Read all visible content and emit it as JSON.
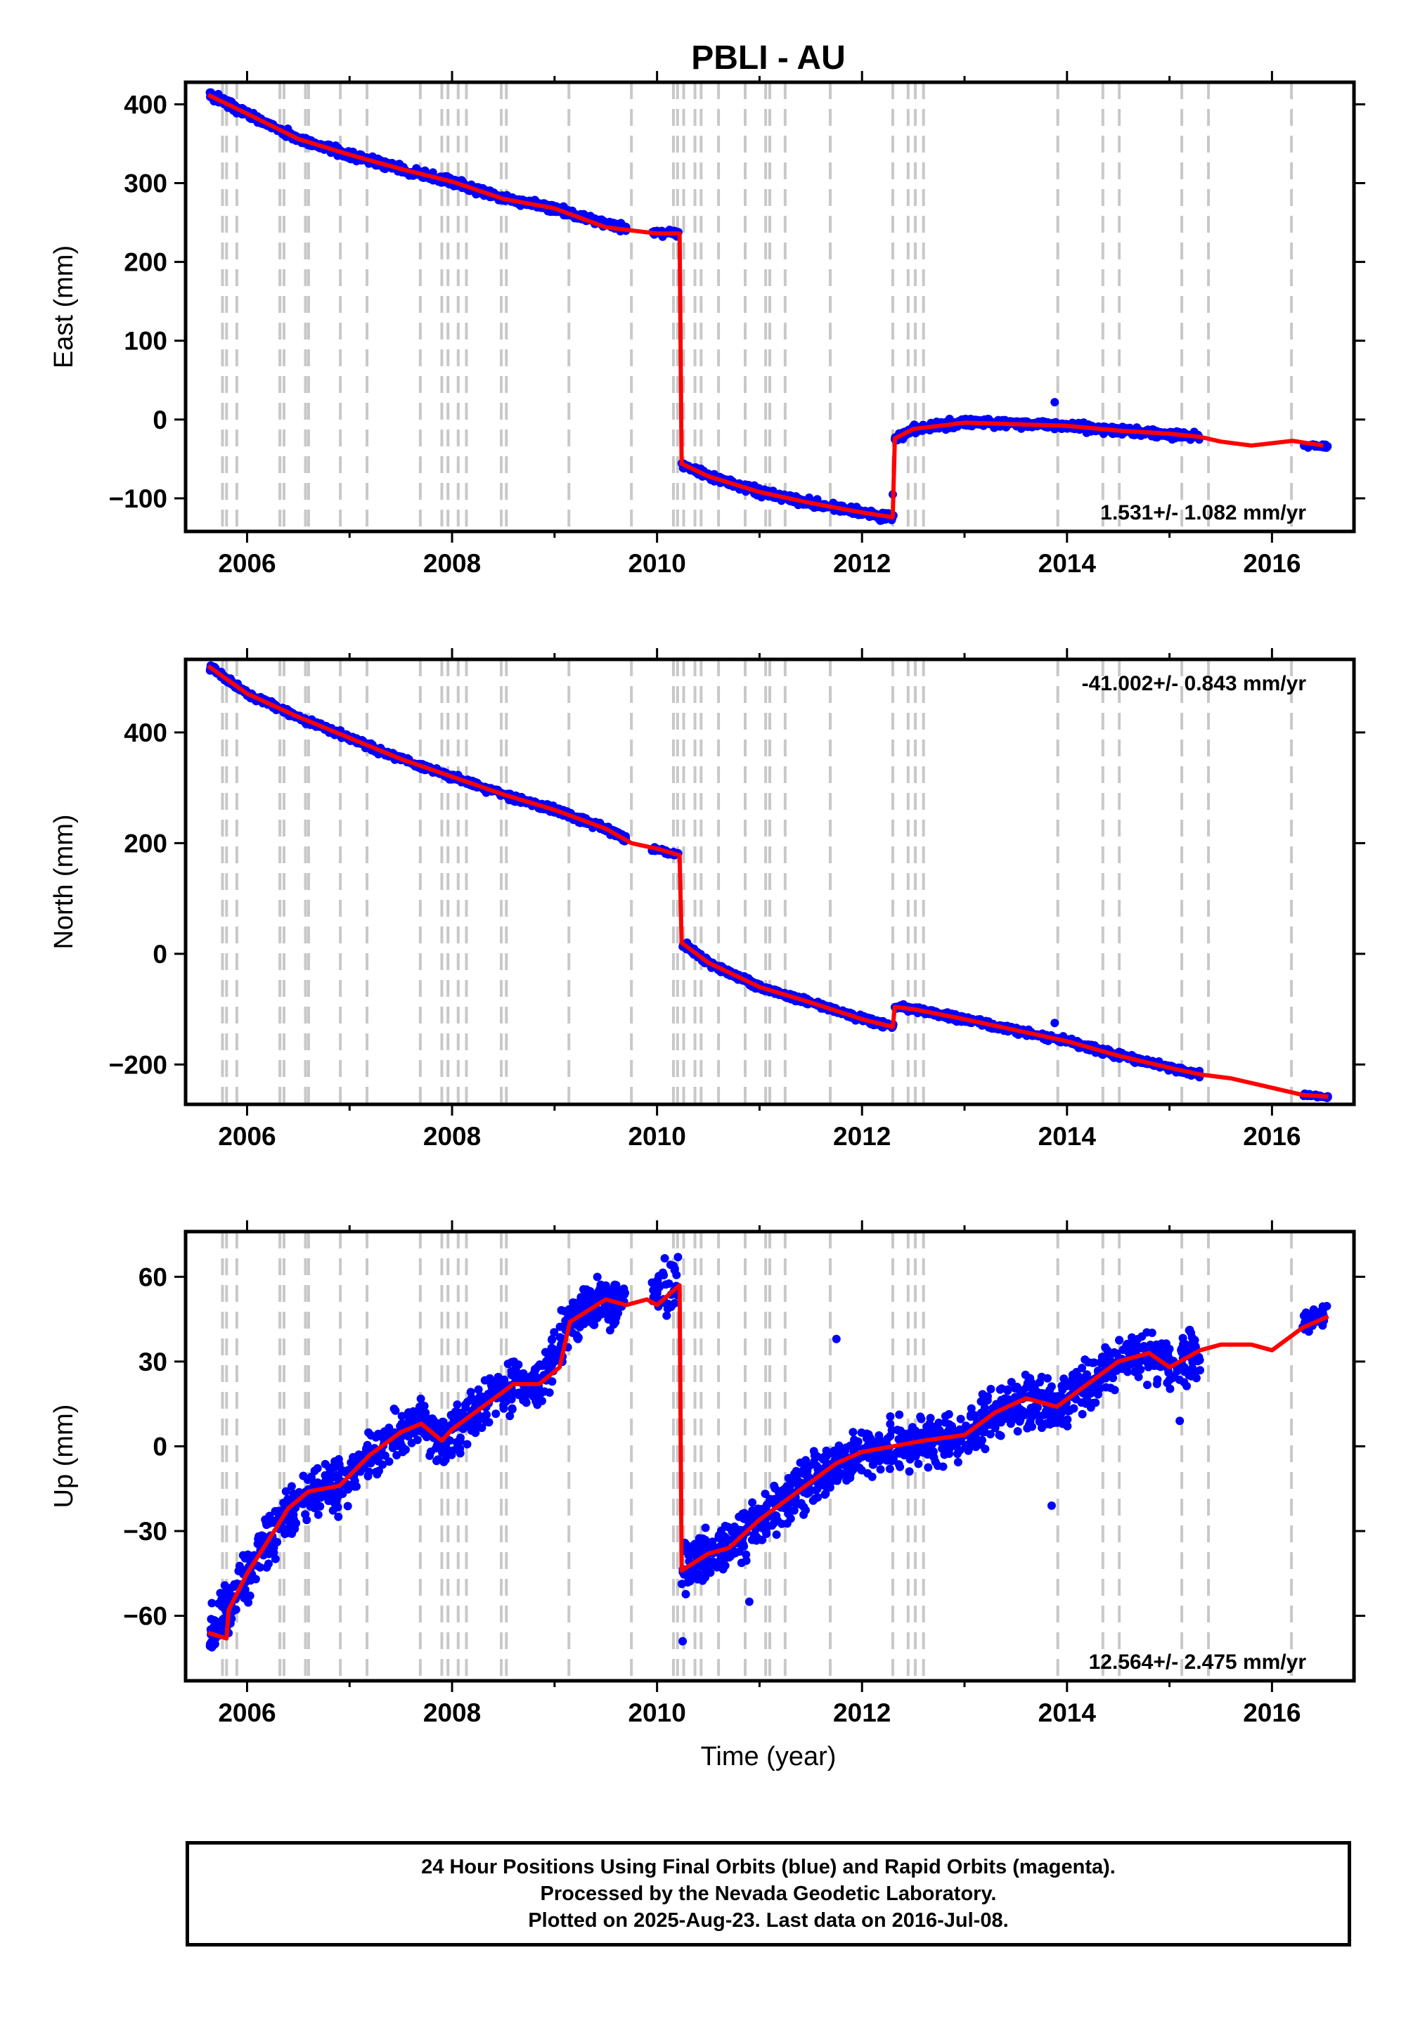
{
  "title": "PBLI - AU",
  "xlabel": "Time (year)",
  "colors": {
    "data": "#0000ff",
    "model": "#ff0000",
    "steps": "#c8c8c8"
  },
  "x_ticks": [
    "2006",
    "2008",
    "2010",
    "2012",
    "2014",
    "2016"
  ],
  "footer": [
    "24 Hour Positions Using Final Orbits (blue) and Rapid Orbits (magenta).",
    "Processed by the Nevada Geodetic Laboratory.",
    "Plotted on 2025-Aug-23. Last data on 2016-Jul-08."
  ],
  "chart_data": [
    {
      "type": "scatter",
      "ylabel": "East (mm)",
      "xlim": [
        2005.4,
        2016.8
      ],
      "ylim": [
        -142,
        428
      ],
      "y_ticks": [
        400,
        300,
        200,
        100,
        0,
        -100
      ],
      "rate_label": "1.531+/- 1.082 mm/yr",
      "rate_position": "bottom-right",
      "model": [
        [
          2005.62,
          412
        ],
        [
          2006.0,
          388
        ],
        [
          2006.5,
          356
        ],
        [
          2007.0,
          336
        ],
        [
          2007.5,
          318
        ],
        [
          2008.0,
          302
        ],
        [
          2008.5,
          280
        ],
        [
          2009.0,
          268
        ],
        [
          2009.5,
          244
        ],
        [
          2009.75,
          240
        ],
        [
          2010.0,
          236
        ],
        [
          2010.22,
          236
        ],
        [
          2010.24,
          -56
        ],
        [
          2010.5,
          -72
        ],
        [
          2011.0,
          -92
        ],
        [
          2011.5,
          -106
        ],
        [
          2012.0,
          -118
        ],
        [
          2012.3,
          -124
        ],
        [
          2012.32,
          -24
        ],
        [
          2012.5,
          -12
        ],
        [
          2013.0,
          -4
        ],
        [
          2013.5,
          -6
        ],
        [
          2014.0,
          -8
        ],
        [
          2014.5,
          -14
        ],
        [
          2015.0,
          -18
        ],
        [
          2015.3,
          -22
        ],
        [
          2015.5,
          -28
        ],
        [
          2015.8,
          -33
        ],
        [
          2016.2,
          -27
        ],
        [
          2016.5,
          -33
        ]
      ],
      "scatter_segments": [
        {
          "x0": 2005.63,
          "x1": 2009.7,
          "pts": [
            [
              2005.63,
              412
            ],
            [
              2006.0,
              388
            ],
            [
              2006.5,
              356
            ],
            [
              2007.0,
              336
            ],
            [
              2007.5,
              318
            ],
            [
              2008.0,
              302
            ],
            [
              2008.5,
              280
            ],
            [
              2009.0,
              268
            ],
            [
              2009.5,
              248
            ],
            [
              2009.7,
              242
            ]
          ],
          "noise": 3.5,
          "n": 820
        },
        {
          "x0": 2009.95,
          "x1": 2010.21,
          "pts": [
            [
              2009.95,
              238
            ],
            [
              2010.21,
              236
            ]
          ],
          "noise": 3,
          "n": 35
        },
        {
          "x0": 2010.24,
          "x1": 2012.31,
          "pts": [
            [
              2010.24,
              -56
            ],
            [
              2010.5,
              -72
            ],
            [
              2011.0,
              -92
            ],
            [
              2011.5,
              -106
            ],
            [
              2012.0,
              -118
            ],
            [
              2012.31,
              -125
            ]
          ],
          "noise": 3.5,
          "n": 420
        },
        {
          "x0": 2012.32,
          "x1": 2015.3,
          "pts": [
            [
              2012.32,
              -24
            ],
            [
              2012.5,
              -12
            ],
            [
              2013.0,
              -3
            ],
            [
              2013.5,
              -5
            ],
            [
              2014.0,
              -8
            ],
            [
              2014.5,
              -14
            ],
            [
              2015.0,
              -19
            ],
            [
              2015.3,
              -22
            ]
          ],
          "noise": 3.5,
          "n": 600
        },
        {
          "x0": 2016.3,
          "x1": 2016.55,
          "pts": [
            [
              2016.3,
              -33
            ],
            [
              2016.55,
              -34
            ]
          ],
          "noise": 1.5,
          "n": 30
        }
      ],
      "outliers": [
        [
          2013.88,
          22
        ],
        [
          2012.3,
          -95
        ]
      ]
    },
    {
      "type": "scatter",
      "ylabel": "North (mm)",
      "xlim": [
        2005.4,
        2016.8
      ],
      "ylim": [
        -272,
        532
      ],
      "y_ticks": [
        400,
        200,
        0,
        -200
      ],
      "rate_label": "-41.002+/- 0.843 mm/yr",
      "rate_position": "top-right",
      "model": [
        [
          2005.62,
          520
        ],
        [
          2006.0,
          470
        ],
        [
          2006.5,
          428
        ],
        [
          2007.0,
          390
        ],
        [
          2007.5,
          352
        ],
        [
          2008.0,
          320
        ],
        [
          2008.5,
          288
        ],
        [
          2009.0,
          260
        ],
        [
          2009.5,
          226
        ],
        [
          2009.75,
          200
        ],
        [
          2010.0,
          190
        ],
        [
          2010.22,
          178
        ],
        [
          2010.24,
          20
        ],
        [
          2010.5,
          -16
        ],
        [
          2011.0,
          -60
        ],
        [
          2011.5,
          -88
        ],
        [
          2012.0,
          -118
        ],
        [
          2012.3,
          -132
        ],
        [
          2012.32,
          -96
        ],
        [
          2012.5,
          -100
        ],
        [
          2013.0,
          -118
        ],
        [
          2013.5,
          -138
        ],
        [
          2014.0,
          -158
        ],
        [
          2014.5,
          -184
        ],
        [
          2015.0,
          -206
        ],
        [
          2015.3,
          -218
        ],
        [
          2015.6,
          -225
        ],
        [
          2016.0,
          -242
        ],
        [
          2016.3,
          -255
        ],
        [
          2016.55,
          -258
        ]
      ],
      "scatter_segments": [
        {
          "x0": 2005.63,
          "x1": 2009.7,
          "pts": [
            [
              2005.63,
              520
            ],
            [
              2006.0,
              470
            ],
            [
              2006.5,
              428
            ],
            [
              2007.0,
              390
            ],
            [
              2007.5,
              352
            ],
            [
              2008.0,
              320
            ],
            [
              2008.5,
              288
            ],
            [
              2009.0,
              260
            ],
            [
              2009.5,
              226
            ],
            [
              2009.7,
              208
            ]
          ],
          "noise": 4,
          "n": 820
        },
        {
          "x0": 2009.95,
          "x1": 2010.21,
          "pts": [
            [
              2009.95,
              190
            ],
            [
              2010.21,
              180
            ]
          ],
          "noise": 3,
          "n": 35
        },
        {
          "x0": 2010.24,
          "x1": 2012.31,
          "pts": [
            [
              2010.24,
              20
            ],
            [
              2010.5,
              -16
            ],
            [
              2011.0,
              -60
            ],
            [
              2011.5,
              -88
            ],
            [
              2012.0,
              -118
            ],
            [
              2012.31,
              -132
            ]
          ],
          "noise": 4,
          "n": 420
        },
        {
          "x0": 2012.32,
          "x1": 2015.3,
          "pts": [
            [
              2012.32,
              -96
            ],
            [
              2012.5,
              -100
            ],
            [
              2013.0,
              -118
            ],
            [
              2013.5,
              -138
            ],
            [
              2014.0,
              -158
            ],
            [
              2014.5,
              -184
            ],
            [
              2015.0,
              -206
            ],
            [
              2015.3,
              -218
            ]
          ],
          "noise": 4,
          "n": 600
        },
        {
          "x0": 2016.3,
          "x1": 2016.55,
          "pts": [
            [
              2016.3,
              -255
            ],
            [
              2016.55,
              -258
            ]
          ],
          "noise": 2,
          "n": 30
        }
      ],
      "outliers": [
        [
          2013.88,
          -125
        ]
      ]
    },
    {
      "type": "scatter",
      "ylabel": "Up (mm)",
      "xlim": [
        2005.4,
        2016.8
      ],
      "ylim": [
        -83,
        76
      ],
      "y_ticks": [
        60,
        30,
        0,
        -30,
        -60
      ],
      "rate_label": "12.564+/- 2.475 mm/yr",
      "rate_position": "bottom-right",
      "model": [
        [
          2005.62,
          -66
        ],
        [
          2005.8,
          -68
        ],
        [
          2005.82,
          -58
        ],
        [
          2006.0,
          -45
        ],
        [
          2006.3,
          -28
        ],
        [
          2006.4,
          -22
        ],
        [
          2006.6,
          -16
        ],
        [
          2006.9,
          -14
        ],
        [
          2007.2,
          -3
        ],
        [
          2007.5,
          5
        ],
        [
          2007.7,
          8
        ],
        [
          2007.9,
          2
        ],
        [
          2008.0,
          6
        ],
        [
          2008.3,
          14
        ],
        [
          2008.6,
          22
        ],
        [
          2008.85,
          22
        ],
        [
          2009.05,
          28
        ],
        [
          2009.15,
          44
        ],
        [
          2009.5,
          52
        ],
        [
          2009.7,
          50
        ],
        [
          2009.9,
          52
        ],
        [
          2010.0,
          50
        ],
        [
          2010.22,
          57
        ],
        [
          2010.24,
          -44
        ],
        [
          2010.5,
          -38
        ],
        [
          2010.7,
          -36
        ],
        [
          2011.0,
          -26
        ],
        [
          2011.3,
          -18
        ],
        [
          2011.6,
          -10
        ],
        [
          2011.75,
          -6
        ],
        [
          2012.0,
          -2
        ],
        [
          2012.3,
          0
        ],
        [
          2012.6,
          2
        ],
        [
          2013.0,
          4
        ],
        [
          2013.3,
          12
        ],
        [
          2013.6,
          17
        ],
        [
          2013.9,
          14
        ],
        [
          2014.2,
          22
        ],
        [
          2014.5,
          30
        ],
        [
          2014.8,
          33
        ],
        [
          2015.0,
          28
        ],
        [
          2015.3,
          34
        ],
        [
          2015.5,
          36
        ],
        [
          2015.8,
          36
        ],
        [
          2016.0,
          34
        ],
        [
          2016.3,
          42
        ],
        [
          2016.55,
          46
        ]
      ],
      "scatter_segments": [
        {
          "x0": 2005.63,
          "x1": 2009.7,
          "pts": [
            [
              2005.63,
              -66
            ],
            [
              2005.82,
              -58
            ],
            [
              2006.0,
              -45
            ],
            [
              2006.3,
              -28
            ],
            [
              2006.6,
              -16
            ],
            [
              2006.9,
              -14
            ],
            [
              2007.2,
              -3
            ],
            [
              2007.5,
              5
            ],
            [
              2007.7,
              8
            ],
            [
              2007.9,
              2
            ],
            [
              2008.3,
              14
            ],
            [
              2008.6,
              22
            ],
            [
              2008.85,
              22
            ],
            [
              2009.15,
              44
            ],
            [
              2009.5,
              52
            ],
            [
              2009.7,
              50
            ]
          ],
          "noise": 6,
          "n": 900
        },
        {
          "x0": 2009.95,
          "x1": 2010.21,
          "pts": [
            [
              2009.95,
              55
            ],
            [
              2010.21,
              57
            ]
          ],
          "noise": 6,
          "n": 40
        },
        {
          "x0": 2010.24,
          "x1": 2012.31,
          "pts": [
            [
              2010.24,
              -44
            ],
            [
              2010.5,
              -38
            ],
            [
              2010.7,
              -36
            ],
            [
              2011.0,
              -26
            ],
            [
              2011.3,
              -18
            ],
            [
              2011.6,
              -10
            ],
            [
              2012.0,
              -2
            ],
            [
              2012.31,
              0
            ]
          ],
          "noise": 6,
          "n": 480
        },
        {
          "x0": 2012.32,
          "x1": 2015.3,
          "pts": [
            [
              2012.32,
              2
            ],
            [
              2012.6,
              2
            ],
            [
              2013.0,
              4
            ],
            [
              2013.3,
              12
            ],
            [
              2013.6,
              17
            ],
            [
              2013.9,
              14
            ],
            [
              2014.2,
              22
            ],
            [
              2014.5,
              30
            ],
            [
              2014.8,
              32
            ],
            [
              2015.0,
              28
            ],
            [
              2015.3,
              34
            ]
          ],
          "noise": 6,
          "n": 650
        },
        {
          "x0": 2016.3,
          "x1": 2016.55,
          "pts": [
            [
              2016.3,
              44
            ],
            [
              2016.55,
              47
            ]
          ],
          "noise": 3,
          "n": 30
        }
      ],
      "outliers": [
        [
          2011.75,
          38
        ],
        [
          2013.85,
          -21
        ],
        [
          2010.25,
          -69
        ],
        [
          2010.9,
          -55
        ],
        [
          2015.1,
          9
        ]
      ]
    }
  ],
  "step_epochs": [
    2005.76,
    2005.8,
    2005.9,
    2006.32,
    2006.36,
    2006.57,
    2006.6,
    2006.91,
    2007.17,
    2007.69,
    2007.9,
    2007.96,
    2008.06,
    2008.14,
    2008.48,
    2008.53,
    2009.14,
    2009.75,
    2010.16,
    2010.2,
    2010.26,
    2010.37,
    2010.43,
    2010.6,
    2010.86,
    2011.06,
    2011.1,
    2011.25,
    2011.69,
    2012.3,
    2012.45,
    2012.52,
    2012.6,
    2013.91,
    2014.35,
    2014.51,
    2015.12,
    2015.38,
    2016.19
  ]
}
